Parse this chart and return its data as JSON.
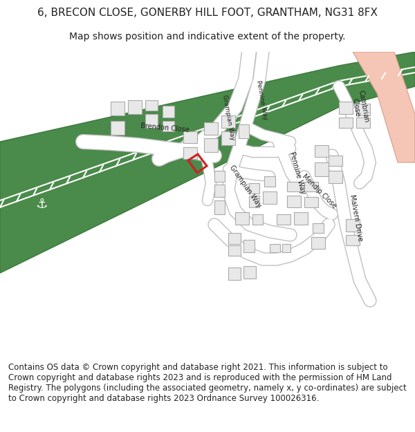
{
  "title_line1": "6, BRECON CLOSE, GONERBY HILL FOOT, GRANTHAM, NG31 8FX",
  "title_line2": "Map shows position and indicative extent of the property.",
  "footer_text": "Contains OS data © Crown copyright and database right 2021. This information is subject to Crown copyright and database rights 2023 and is reproduced with the permission of HM Land Registry. The polygons (including the associated geometry, namely x, y co-ordinates) are subject to Crown copyright and database rights 2023 Ordnance Survey 100026316.",
  "bg_color": "#ffffff",
  "map_bg_color": "#f5f5f0",
  "road_color": "#ffffff",
  "road_outline_color": "#c8c8c8",
  "building_color": "#e8e8e8",
  "building_outline_color": "#aaaaaa",
  "green_color": "#4a8a4a",
  "green_outline_color": "#3a7a3a",
  "plot_color": "#cc2222",
  "text_color": "#222222",
  "title_fontsize": 11,
  "subtitle_fontsize": 10,
  "footer_fontsize": 8.5,
  "label_fontsize": 7
}
